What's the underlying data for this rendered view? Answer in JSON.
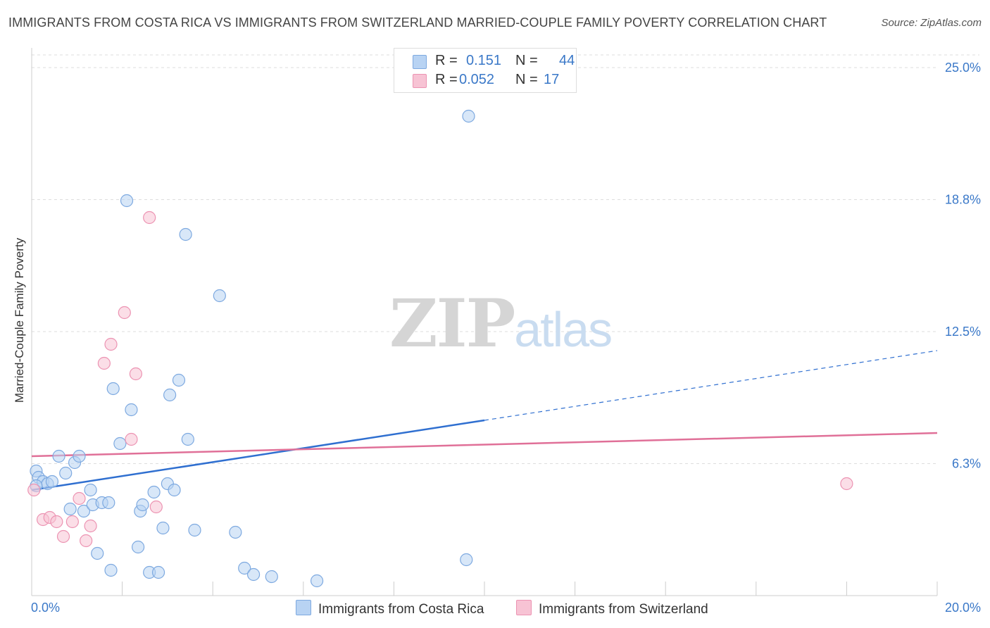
{
  "title": "IMMIGRANTS FROM COSTA RICA VS IMMIGRANTS FROM SWITZERLAND MARRIED-COUPLE FAMILY POVERTY CORRELATION CHART",
  "source": "Source: ZipAtlas.com",
  "watermark": {
    "zip": "ZIP",
    "atlas": "atlas"
  },
  "colors": {
    "costa_rica_fill": "#b8d3f3",
    "costa_rica_stroke": "#7da9e0",
    "costa_rica_line": "#2f6fd0",
    "switzerland_fill": "#f7c3d4",
    "switzerland_stroke": "#ec93b2",
    "switzerland_line": "#e07098",
    "tick_label": "#3a78c8",
    "grid": "#dddddd"
  },
  "legend": {
    "rows": [
      {
        "r_label": "R =",
        "r_value": "0.151",
        "n_label": "N =",
        "n_value": "44"
      },
      {
        "r_label": "R =",
        "r_value": "0.052",
        "n_label": "N =",
        "n_value": "17"
      }
    ]
  },
  "bottom_legend": [
    {
      "label": "Immigrants from Costa Rica"
    },
    {
      "label": "Immigrants from Switzerland"
    }
  ],
  "chart_data": {
    "type": "scatter",
    "title": "IMMIGRANTS FROM COSTA RICA VS IMMIGRANTS FROM SWITZERLAND MARRIED-COUPLE FAMILY POVERTY CORRELATION CHART",
    "xlabel": "",
    "ylabel": "Married-Couple Family Poverty",
    "xlim": [
      0,
      20
    ],
    "ylim": [
      0,
      25
    ],
    "x_tick_labels": [
      {
        "value": 0,
        "label": "0.0%"
      },
      {
        "value": 20,
        "label": "20.0%"
      }
    ],
    "y_tick_labels": [
      {
        "value": 6.25,
        "label": "6.3%"
      },
      {
        "value": 12.5,
        "label": "12.5%"
      },
      {
        "value": 18.75,
        "label": "18.8%"
      },
      {
        "value": 25,
        "label": "25.0%"
      }
    ],
    "series": [
      {
        "name": "Immigrants from Costa Rica",
        "points": [
          [
            0.1,
            5.9
          ],
          [
            0.15,
            5.6
          ],
          [
            0.25,
            5.4
          ],
          [
            0.35,
            5.3
          ],
          [
            0.45,
            5.4
          ],
          [
            0.6,
            6.6
          ],
          [
            0.75,
            5.8
          ],
          [
            0.85,
            4.1
          ],
          [
            0.95,
            6.3
          ],
          [
            1.05,
            6.6
          ],
          [
            1.15,
            4.0
          ],
          [
            1.3,
            5.0
          ],
          [
            1.35,
            4.3
          ],
          [
            1.45,
            2.0
          ],
          [
            1.55,
            4.4
          ],
          [
            1.7,
            4.4
          ],
          [
            1.75,
            1.2
          ],
          [
            1.8,
            9.8
          ],
          [
            1.95,
            7.2
          ],
          [
            2.1,
            18.7
          ],
          [
            2.2,
            8.8
          ],
          [
            2.35,
            2.3
          ],
          [
            2.4,
            4.0
          ],
          [
            2.45,
            4.3
          ],
          [
            2.6,
            1.1
          ],
          [
            2.7,
            4.9
          ],
          [
            2.8,
            1.1
          ],
          [
            2.9,
            3.2
          ],
          [
            3.0,
            5.3
          ],
          [
            3.05,
            9.5
          ],
          [
            3.15,
            5.0
          ],
          [
            3.25,
            10.2
          ],
          [
            3.4,
            17.1
          ],
          [
            3.45,
            7.4
          ],
          [
            3.6,
            3.1
          ],
          [
            4.15,
            14.2
          ],
          [
            4.5,
            3.0
          ],
          [
            4.7,
            1.3
          ],
          [
            4.9,
            1.0
          ],
          [
            5.3,
            0.9
          ],
          [
            6.3,
            0.7
          ],
          [
            9.6,
            1.7
          ],
          [
            9.65,
            22.7
          ],
          [
            0.1,
            5.2
          ]
        ],
        "trend": {
          "x": [
            0,
            20
          ],
          "y": [
            5.0,
            11.6
          ],
          "solid_until_x": 10
        }
      },
      {
        "name": "Immigrants from Switzerland",
        "points": [
          [
            0.05,
            5.0
          ],
          [
            0.25,
            3.6
          ],
          [
            0.4,
            3.7
          ],
          [
            0.55,
            3.5
          ],
          [
            0.7,
            2.8
          ],
          [
            0.9,
            3.5
          ],
          [
            1.05,
            4.6
          ],
          [
            1.2,
            2.6
          ],
          [
            1.3,
            3.3
          ],
          [
            1.6,
            11.0
          ],
          [
            1.75,
            11.9
          ],
          [
            2.05,
            13.4
          ],
          [
            2.2,
            7.4
          ],
          [
            2.3,
            10.5
          ],
          [
            2.6,
            17.9
          ],
          [
            2.75,
            4.2
          ],
          [
            18.0,
            5.3
          ]
        ],
        "trend": {
          "x": [
            0,
            20
          ],
          "y": [
            6.6,
            7.7
          ]
        }
      }
    ]
  }
}
